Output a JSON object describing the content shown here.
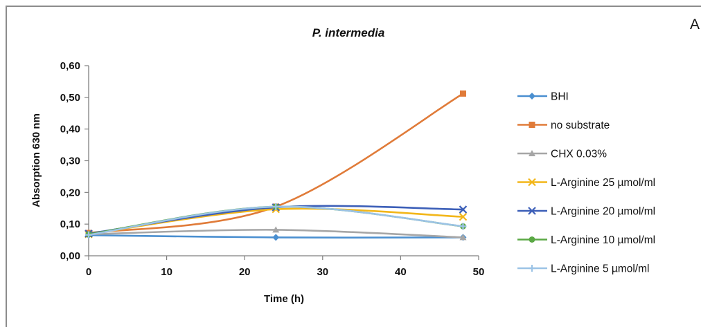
{
  "panel_label": "A",
  "chart_data": {
    "type": "line",
    "title": "P. intermedia",
    "xlabel": "Time (h)",
    "ylabel": "Absorption 630 nm",
    "x": [
      0,
      24,
      48
    ],
    "xlim": [
      0,
      50
    ],
    "ylim": [
      0,
      0.6
    ],
    "xticks": [
      "0",
      "10",
      "20",
      "30",
      "40",
      "50"
    ],
    "yticks": [
      "0,00",
      "0,10",
      "0,20",
      "0,30",
      "0,40",
      "0,50",
      "0,60"
    ],
    "grid": false,
    "legend_position": "right",
    "series": [
      {
        "name": "BHI",
        "values": [
          0.065,
          0.058,
          0.058
        ],
        "color": "#4a8fd0",
        "marker": "diamond"
      },
      {
        "name": "no substrate",
        "values": [
          0.072,
          0.155,
          0.512
        ],
        "color": "#e07b39",
        "marker": "square"
      },
      {
        "name": "CHX 0.03%",
        "values": [
          0.068,
          0.082,
          0.058
        ],
        "color": "#a6a6a6",
        "marker": "triangle"
      },
      {
        "name": "L-Arginine 25 µmol/ml",
        "values": [
          0.068,
          0.147,
          0.123
        ],
        "color": "#f2b619",
        "marker": "x"
      },
      {
        "name": "L-Arginine 20 µmol/ml",
        "values": [
          0.07,
          0.153,
          0.146
        ],
        "color": "#3c5fb8",
        "marker": "x"
      },
      {
        "name": "L-Arginine 10 µmol/ml",
        "values": [
          0.068,
          0.155,
          0.093
        ],
        "color": "#5aa844",
        "marker": "circle"
      },
      {
        "name": "L-Arginine 5 µmol/ml",
        "values": [
          0.066,
          0.155,
          0.093
        ],
        "color": "#9cc3e6",
        "marker": "plus"
      }
    ]
  }
}
